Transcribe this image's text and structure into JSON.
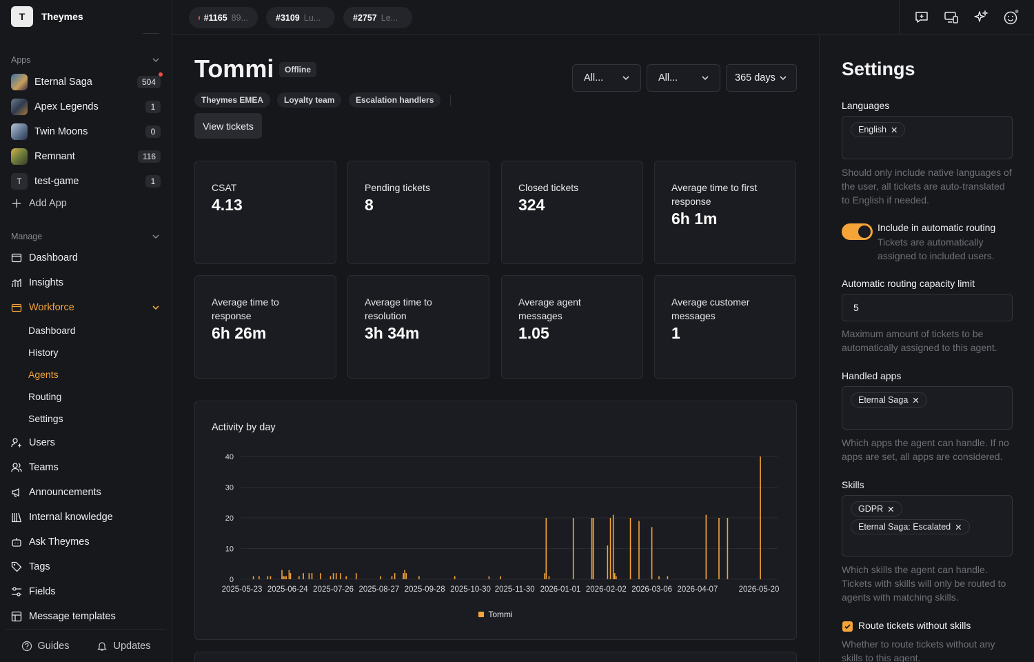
{
  "workspace": {
    "initial": "T",
    "name": "Theymes"
  },
  "sidebar": {
    "apps_label": "Apps",
    "apps": [
      {
        "name": "Eternal Saga",
        "count": "504",
        "notify": true
      },
      {
        "name": "Apex Legends",
        "count": "1"
      },
      {
        "name": "Twin Moons",
        "count": "0"
      },
      {
        "name": "Remnant",
        "count": "116"
      },
      {
        "name": "test-game",
        "count": "1",
        "initial": "T"
      }
    ],
    "add_app": "Add App",
    "manage_label": "Manage",
    "dashboard": "Dashboard",
    "insights": "Insights",
    "workforce": "Workforce",
    "workforce_items": [
      "Dashboard",
      "History",
      "Agents",
      "Routing",
      "Settings"
    ],
    "users": "Users",
    "teams": "Teams",
    "announcements": "Announcements",
    "internal_knowledge": "Internal knowledge",
    "ask": "Ask Theymes",
    "tags": "Tags",
    "fields": "Fields",
    "message_templates": "Message templates",
    "guides": "Guides",
    "updates": "Updates"
  },
  "tabs": [
    {
      "num": "#1165",
      "sub": "89...",
      "unread": true
    },
    {
      "num": "#3109",
      "sub": "Lu..."
    },
    {
      "num": "#2757",
      "sub": "Le..."
    }
  ],
  "agent": {
    "name": "Tommi",
    "status": "Offline",
    "teams": [
      "Theymes EMEA",
      "Loyalty team",
      "Escalation handlers"
    ],
    "view_tickets": "View tickets"
  },
  "filters": {
    "f1": "All...",
    "f2": "All...",
    "period": "365 days"
  },
  "stats": [
    {
      "label": "CSAT",
      "value": "4.13"
    },
    {
      "label": "Pending tickets",
      "value": "8"
    },
    {
      "label": "Closed tickets",
      "value": "324"
    },
    {
      "label": "Average time to first response",
      "value": "6h 1m"
    },
    {
      "label": "Average time to response",
      "value": "6h 26m"
    },
    {
      "label": "Average time to resolution",
      "value": "3h 34m"
    },
    {
      "label": "Average agent messages",
      "value": "1.05"
    },
    {
      "label": "Average customer messages",
      "value": "1"
    }
  ],
  "chart_data": {
    "type": "bar",
    "title": "Activity by day",
    "ylim": [
      0,
      40
    ],
    "yticks": [
      0,
      10,
      20,
      30,
      40
    ],
    "x_ticks": [
      "2025-05-23",
      "2025-06-24",
      "2025-07-26",
      "2025-08-27",
      "2025-09-28",
      "2025-10-30",
      "2025-11-30",
      "2026-01-01",
      "2026-02-02",
      "2026-03-06",
      "2026-04-07",
      "2026-05-20"
    ],
    "grid": true,
    "legend": "bottom",
    "color": "#f5a43a",
    "series": [
      {
        "name": "Tommi",
        "points": [
          [
            "2025-05-31",
            1
          ],
          [
            "2025-06-04",
            1
          ],
          [
            "2025-06-10",
            1
          ],
          [
            "2025-06-12",
            1
          ],
          [
            "2025-06-20",
            3
          ],
          [
            "2025-06-21",
            1
          ],
          [
            "2025-06-22",
            1
          ],
          [
            "2025-06-23",
            1
          ],
          [
            "2025-06-25",
            3
          ],
          [
            "2025-06-26",
            2
          ],
          [
            "2025-07-02",
            1
          ],
          [
            "2025-07-05",
            2
          ],
          [
            "2025-07-09",
            2
          ],
          [
            "2025-07-11",
            2
          ],
          [
            "2025-07-17",
            2
          ],
          [
            "2025-07-24",
            1
          ],
          [
            "2025-07-26",
            2
          ],
          [
            "2025-07-28",
            2
          ],
          [
            "2025-07-31",
            2
          ],
          [
            "2025-08-04",
            1
          ],
          [
            "2025-08-11",
            2
          ],
          [
            "2025-08-28",
            1
          ],
          [
            "2025-09-05",
            1
          ],
          [
            "2025-09-07",
            2
          ],
          [
            "2025-09-13",
            2
          ],
          [
            "2025-09-14",
            3
          ],
          [
            "2025-09-15",
            2
          ],
          [
            "2025-09-24",
            1
          ],
          [
            "2025-10-19",
            1
          ],
          [
            "2025-11-12",
            1
          ],
          [
            "2025-11-20",
            1
          ],
          [
            "2025-12-21",
            2
          ],
          [
            "2025-12-22",
            20
          ],
          [
            "2025-12-24",
            1
          ],
          [
            "2026-01-10",
            20
          ],
          [
            "2026-01-23",
            20
          ],
          [
            "2026-01-24",
            20
          ],
          [
            "2026-02-03",
            11
          ],
          [
            "2026-02-05",
            20
          ],
          [
            "2026-02-07",
            21
          ],
          [
            "2026-02-08",
            2
          ],
          [
            "2026-02-09",
            1
          ],
          [
            "2026-02-19",
            20
          ],
          [
            "2026-02-25",
            19
          ],
          [
            "2026-03-06",
            17
          ],
          [
            "2026-03-11",
            1
          ],
          [
            "2026-03-17",
            1
          ],
          [
            "2026-04-13",
            21
          ],
          [
            "2026-04-22",
            20
          ],
          [
            "2026-04-28",
            20
          ],
          [
            "2026-05-21",
            40
          ]
        ]
      }
    ]
  },
  "settings": {
    "title": "Settings",
    "languages_label": "Languages",
    "languages": [
      "English"
    ],
    "languages_help": "Should only include native languages of the user, all tickets are auto-translated to English if needed.",
    "routing_label": "Include in automatic routing",
    "routing_on": true,
    "routing_help": "Tickets are automatically assigned to included users.",
    "capacity_label": "Automatic routing capacity limit",
    "capacity_value": "5",
    "capacity_help": "Maximum amount of tickets to be automatically assigned to this agent.",
    "apps_label": "Handled apps",
    "apps": [
      "Eternal Saga"
    ],
    "apps_help": "Which apps the agent can handle. If no apps are set, all apps are considered.",
    "skills_label": "Skills",
    "skills": [
      "GDPR",
      "Eternal Saga: Escalated"
    ],
    "skills_help": "Which skills the agent can handle. Tickets with skills will only be routed to agents with matching skills.",
    "route_without_label": "Route tickets without skills",
    "route_without_checked": true,
    "route_without_help": "Whether to route tickets without any skills to this agent."
  }
}
